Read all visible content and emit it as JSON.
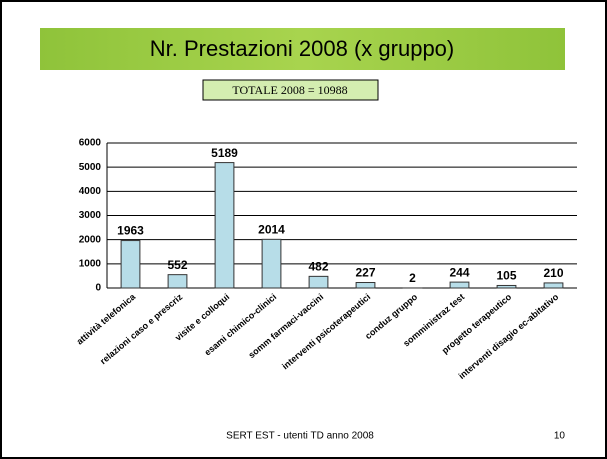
{
  "chart_data": {
    "type": "bar",
    "title": "Nr. Prestazioni 2008 (x gruppo)",
    "annotation": "TOTALE 2008 = 10988",
    "categories": [
      "attività telefonica",
      "relazioni caso e prescriz",
      "visite e colloqui",
      "esami chimico-clinici",
      "somm farmaci-vaccini",
      "interventi psicoterapeutici",
      "conduz gruppo",
      "somministraz test",
      "progetto terapeutico",
      "interventi disagio ec-abitativo"
    ],
    "values": [
      1963,
      552,
      5189,
      2014,
      482,
      227,
      2,
      244,
      105,
      210
    ],
    "color": "#b7dde8",
    "ylim": [
      0,
      6000
    ],
    "yticks": [
      0,
      1000,
      2000,
      3000,
      4000,
      5000,
      6000
    ],
    "grid": true
  },
  "footer": {
    "text": "SERT EST - utenti TD anno 2008",
    "page": "10"
  }
}
